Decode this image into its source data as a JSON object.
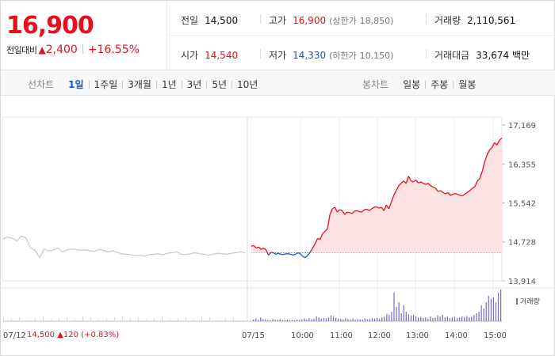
{
  "quote": {
    "price": "16,900",
    "change_label": "전일대비",
    "change_arrow": "▲",
    "change_amount": "2,400",
    "change_pct": "+16.55%"
  },
  "stats": {
    "prev_close_label": "전일",
    "prev_close": "14,500",
    "high_label": "고가",
    "high": "16,900",
    "upper_limit_label": "(상한가",
    "upper_limit": "18,850)",
    "volume_label": "거래량",
    "volume": "2,110,561",
    "open_label": "시가",
    "open": "14,540",
    "low_label": "저가",
    "low": "14,330",
    "lower_limit_label": "(하한가",
    "lower_limit": "10,150)",
    "amount_label": "거래대금",
    "amount": "33,674 백만"
  },
  "tabs": {
    "line_title": "선차트",
    "line_items": [
      "1일",
      "1주일",
      "3개월",
      "1년",
      "3년",
      "5년",
      "10년"
    ],
    "line_active": 0,
    "candle_title": "봉차트",
    "candle_items": [
      "일봉",
      "주봉",
      "월봉"
    ]
  },
  "colors": {
    "up": "#e4101c",
    "down": "#1456d1",
    "prev_day": "#c8c8c8",
    "fill": "#fde3e3",
    "volume": "#7b66c6"
  },
  "chart_data": {
    "type": "line",
    "y_ticks": [
      "17,169",
      "16,355",
      "15,542",
      "14,728",
      "13,914"
    ],
    "ylim": [
      13914,
      17169
    ],
    "baseline": 14500,
    "volume_label": "거래량",
    "prev_day_label": "07/12",
    "prev_day_close": "14,500",
    "prev_day_change_arrow": "▲",
    "prev_day_change": "120",
    "prev_day_change_pct": "(+0.83%)",
    "x_ticks": [
      "07/15",
      "10:00",
      "11:00",
      "12:00",
      "13:00",
      "14:00",
      "15:00"
    ],
    "prev_day_series": [
      14790,
      14830,
      14800,
      14750,
      14850,
      14810,
      14600,
      14550,
      14400,
      14580,
      14540,
      14560,
      14600,
      14520,
      14560,
      14580,
      14570,
      14550,
      14560,
      14540,
      14530,
      14570,
      14550,
      14520,
      14540,
      14510,
      14480,
      14470,
      14460,
      14440,
      14450,
      14430,
      14460,
      14470,
      14480,
      14460,
      14490,
      14500,
      14520,
      14470,
      14460,
      14480,
      14500,
      14480,
      14470,
      14450,
      14470,
      14490,
      14480,
      14470,
      14490,
      14500,
      14520,
      14500
    ],
    "today_series": [
      14640,
      14650,
      14600,
      14620,
      14570,
      14600,
      14560,
      14450,
      14510,
      14500,
      14470,
      14490,
      14470,
      14460,
      14480,
      14480,
      14470,
      14450,
      14470,
      14500,
      14480,
      14420,
      14400,
      14450,
      14520,
      14600,
      14700,
      14800,
      14780,
      14900,
      14950,
      15000,
      15300,
      15420,
      15450,
      15350,
      15400,
      15380,
      15300,
      15350,
      15340,
      15320,
      15370,
      15380,
      15360,
      15350,
      15400,
      15410,
      15380,
      15420,
      15450,
      15460,
      15430,
      15450,
      15380,
      15500,
      15420,
      15560,
      15700,
      15800,
      15900,
      15950,
      16000,
      15950,
      16100,
      16000,
      15980,
      16020,
      15960,
      15980,
      15950,
      15930,
      15950,
      15900,
      15870,
      15850,
      15780,
      15800,
      15760,
      15730,
      15760,
      15700,
      15720,
      15740,
      15720,
      15700,
      15690,
      15730,
      15760,
      15800,
      15850,
      15880,
      16000,
      16050,
      16200,
      16400,
      16550,
      16650,
      16700,
      16800,
      16750,
      16850,
      16900
    ],
    "volume_relative": [
      0.05,
      0.08,
      0.04,
      0.12,
      0.06,
      0.05,
      0.03,
      0.04,
      0.07,
      0.05,
      0.04,
      0.06,
      0.03,
      0.04,
      0.05,
      0.03,
      0.04,
      0.03,
      0.05,
      0.04,
      0.06,
      0.08,
      0.05,
      0.1,
      0.06,
      0.07,
      0.15,
      0.12,
      0.08,
      0.1,
      0.09,
      0.12,
      0.18,
      0.14,
      0.1,
      0.08,
      0.07,
      0.06,
      0.09,
      0.07,
      0.06,
      0.08,
      0.05,
      0.07,
      0.06,
      0.05,
      0.08,
      0.06,
      0.07,
      0.09,
      0.08,
      0.1,
      0.07,
      0.12,
      0.14,
      0.22,
      0.2,
      0.3,
      0.9,
      0.45,
      0.6,
      0.25,
      0.5,
      0.3,
      0.22,
      0.18,
      0.2,
      0.15,
      0.12,
      0.14,
      0.1,
      0.12,
      0.08,
      0.15,
      0.1,
      0.12,
      0.18,
      0.14,
      0.2,
      0.12,
      0.15,
      0.1,
      0.12,
      0.14,
      0.1,
      0.12,
      0.15,
      0.13,
      0.16,
      0.12,
      0.14,
      0.2,
      0.25,
      0.3,
      0.5,
      0.4,
      0.6,
      0.8,
      0.7,
      0.75,
      0.6,
      0.9,
      1.0
    ]
  }
}
